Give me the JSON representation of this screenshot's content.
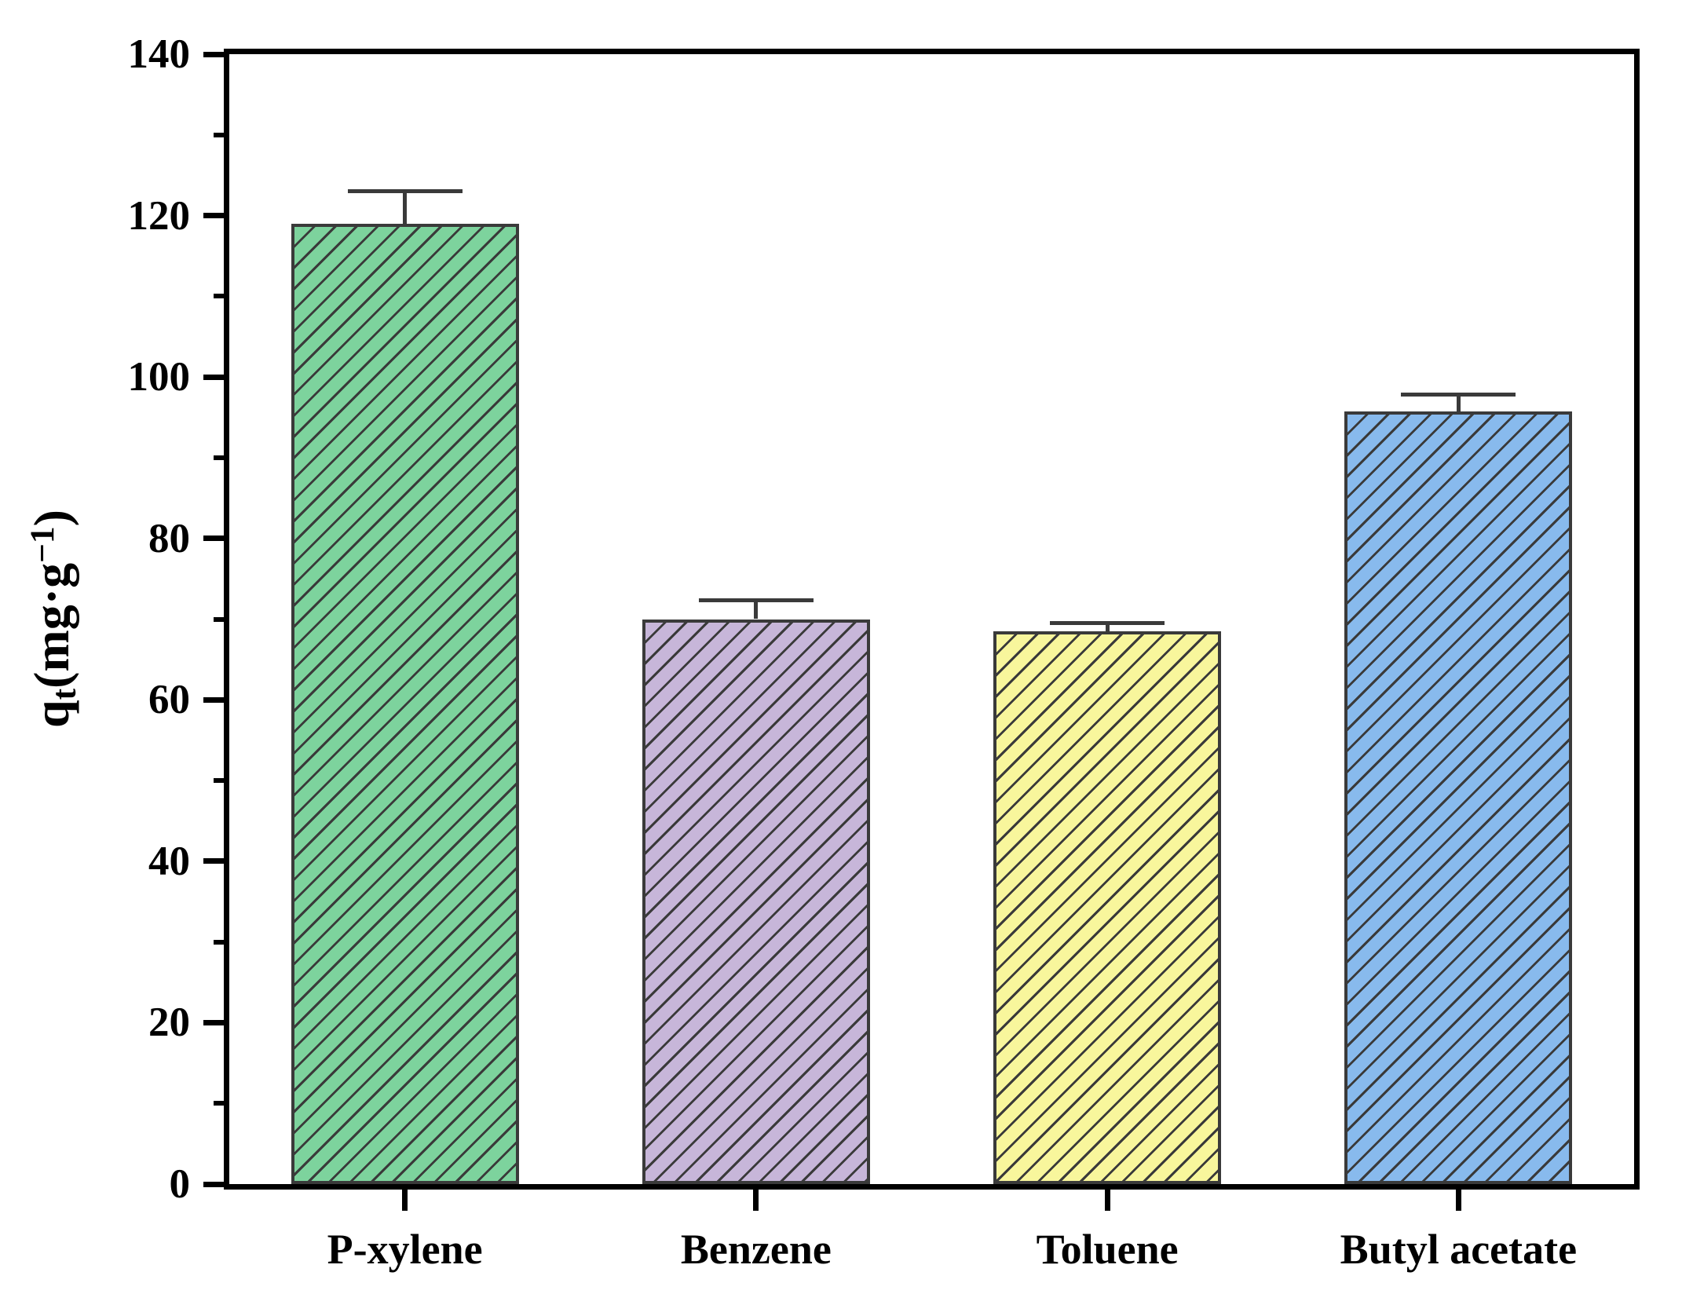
{
  "figure": {
    "background": "#ffffff"
  },
  "chart_data": {
    "type": "bar",
    "title": "",
    "xlabel": "",
    "categories": [
      "P-xylene",
      "Benzene",
      "Toluene",
      "Butyl acetate"
    ],
    "values": [
      119,
      70,
      68.5,
      95.7
    ],
    "errors_plus": [
      4.0,
      2.3,
      1.0,
      2.1
    ],
    "bar_fill_colors": [
      "#7dd39d",
      "#c7b6d9",
      "#f8f69c",
      "#88baed"
    ],
    "bar_border_color": "#3a3a3a",
    "hatch": {
      "pattern": "forward-diagonal",
      "color": "#3a3a3a"
    },
    "axis_color": "#000000",
    "ylim": [
      0,
      140
    ],
    "yticks_major": [
      0,
      20,
      40,
      60,
      80,
      100,
      120,
      140
    ],
    "yticks_minor": [
      10,
      30,
      50,
      70,
      90,
      110,
      130
    ],
    "ylabel": {
      "main": "q",
      "sub": "t",
      "open": "(mg·g",
      "sup": "−1",
      "close": ")"
    },
    "grid": false,
    "legend": null
  }
}
